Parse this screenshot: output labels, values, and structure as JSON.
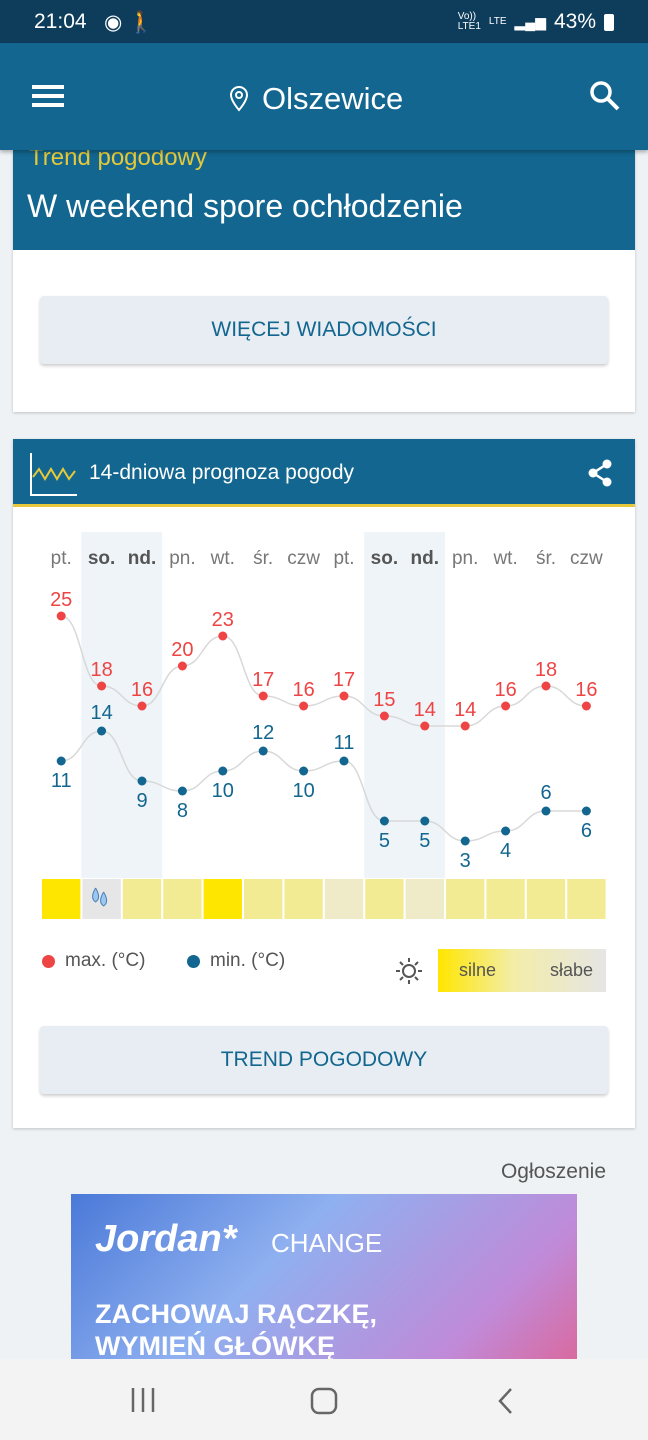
{
  "status": {
    "time": "21:04",
    "volte": "Vo))",
    "lte1": "LTE1",
    "lte": "LTE",
    "battery": "43%"
  },
  "appbar": {
    "location": "Olszewice"
  },
  "news": {
    "tag": "Trend pogodowy",
    "title": "W weekend spore ochłodzenie",
    "button": "WIĘCEJ WIADOMOŚCI"
  },
  "forecast": {
    "title": "14-dniowa prognoza pogody",
    "legend_max": "max. (°C)",
    "legend_min": "min. (°C)",
    "sun_strong": "silne",
    "sun_weak": "słabe",
    "button": "TREND POGODOWY",
    "colors": {
      "max": "#ee4444",
      "min": "#12668f"
    }
  },
  "chart_data": {
    "type": "line",
    "days": [
      "pt.",
      "so.",
      "nd.",
      "pn.",
      "wt.",
      "śr.",
      "czw",
      "pt.",
      "so.",
      "nd.",
      "pn.",
      "wt.",
      "śr.",
      "czw"
    ],
    "weekend": [
      false,
      true,
      true,
      false,
      false,
      false,
      false,
      false,
      true,
      true,
      false,
      false,
      false,
      false
    ],
    "series": [
      {
        "name": "max. (°C)",
        "values": [
          25,
          18,
          16,
          20,
          23,
          17,
          16,
          17,
          15,
          14,
          14,
          16,
          18,
          16
        ]
      },
      {
        "name": "min. (°C)",
        "values": [
          11,
          14,
          9,
          8,
          10,
          12,
          10,
          11,
          5,
          5,
          3,
          4,
          6,
          6
        ]
      }
    ],
    "sun_strength": [
      1,
      0,
      0.6,
      0.6,
      1,
      0.6,
      0.6,
      0.3,
      0.6,
      0.3,
      0.6,
      0.6,
      0.6,
      0.6
    ],
    "rain": [
      false,
      true,
      false,
      false,
      false,
      false,
      false,
      false,
      false,
      false,
      false,
      false,
      false,
      false
    ]
  },
  "ad": {
    "label": "Ogłoszenie",
    "brand": "Jordan*",
    "sub": "CHANGE",
    "slogan1": "ZACHOWAJ RĄCZKĘ,",
    "slogan2": "WYMIEŃ GŁÓWKĘ"
  }
}
